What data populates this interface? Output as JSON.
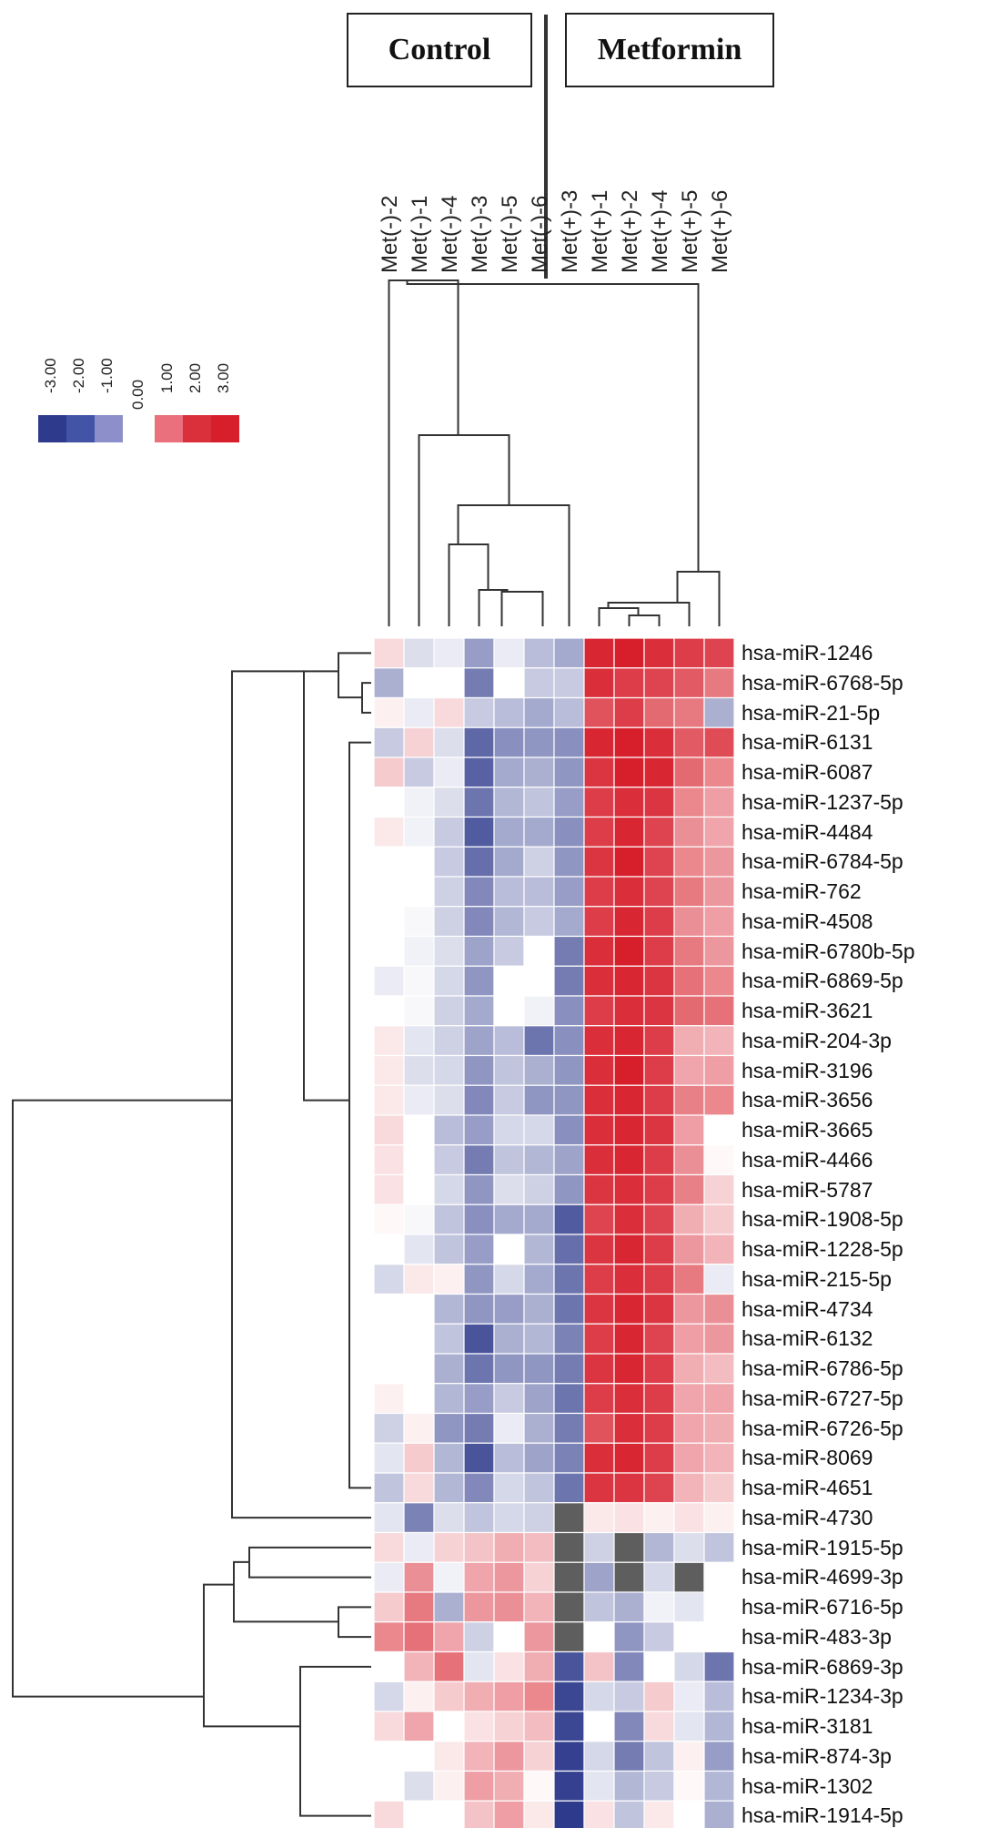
{
  "chart_data": {
    "type": "heatmap",
    "groups": [
      {
        "label": "Control"
      },
      {
        "label": "Metformin"
      }
    ],
    "columns": [
      "Met(-)-2",
      "Met(-)-1",
      "Met(-)-4",
      "Met(-)-3",
      "Met(-)-5",
      "Met(-)-6",
      "Met(+)-3",
      "Met(+)-1",
      "Met(+)-2",
      "Met(+)-4",
      "Met(+)-5",
      "Met(+)-6"
    ],
    "rows": [
      "hsa-miR-1246",
      "hsa-miR-6768-5p",
      "hsa-miR-21-5p",
      "hsa-miR-6131",
      "hsa-miR-6087",
      "hsa-miR-1237-5p",
      "hsa-miR-4484",
      "hsa-miR-6784-5p",
      "hsa-miR-762",
      "hsa-miR-4508",
      "hsa-miR-6780b-5p",
      "hsa-miR-6869-5p",
      "hsa-miR-3621",
      "hsa-miR-204-3p",
      "hsa-miR-3196",
      "hsa-miR-3656",
      "hsa-miR-3665",
      "hsa-miR-4466",
      "hsa-miR-5787",
      "hsa-miR-1908-5p",
      "hsa-miR-1228-5p",
      "hsa-miR-215-5p",
      "hsa-miR-4734",
      "hsa-miR-6132",
      "hsa-miR-6786-5p",
      "hsa-miR-6727-5p",
      "hsa-miR-6726-5p",
      "hsa-miR-8069",
      "hsa-miR-4651",
      "hsa-miR-4730",
      "hsa-miR-1915-5p",
      "hsa-miR-4699-3p",
      "hsa-miR-6716-5p",
      "hsa-miR-483-3p",
      "hsa-miR-6869-3p",
      "hsa-miR-1234-3p",
      "hsa-miR-3181",
      "hsa-miR-874-3p",
      "hsa-miR-1302",
      "hsa-miR-1914-5p"
    ],
    "values": [
      [
        0.5,
        -0.5,
        -0.3,
        -1.5,
        -0.3,
        -1.0,
        -1.3,
        2.9,
        3.0,
        2.8,
        2.6,
        2.5
      ],
      [
        -1.2,
        0,
        0,
        -2.0,
        0,
        -0.8,
        -0.8,
        2.8,
        2.6,
        2.5,
        2.2,
        1.8
      ],
      [
        0.2,
        -0.3,
        0.5,
        -0.8,
        -1.0,
        -1.3,
        -1.0,
        2.3,
        2.6,
        2.0,
        1.8,
        -1.2
      ],
      [
        -0.8,
        0.6,
        -0.5,
        -2.3,
        -1.7,
        -1.6,
        -1.7,
        2.9,
        3.0,
        2.8,
        2.2,
        2.4
      ],
      [
        0.7,
        -0.8,
        -0.3,
        -2.4,
        -1.3,
        -1.2,
        -1.6,
        2.7,
        3.0,
        2.9,
        2.0,
        1.6
      ],
      [
        0,
        -0.2,
        -0.5,
        -2.1,
        -1.1,
        -0.9,
        -1.5,
        2.6,
        2.8,
        2.7,
        1.6,
        1.3
      ],
      [
        0.3,
        -0.2,
        -0.8,
        -2.5,
        -1.3,
        -1.3,
        -1.7,
        2.6,
        2.9,
        2.5,
        1.5,
        1.2
      ],
      [
        0,
        0,
        -0.8,
        -2.2,
        -1.3,
        -0.7,
        -1.6,
        2.7,
        3.0,
        2.5,
        1.6,
        1.4
      ],
      [
        0,
        0,
        -0.7,
        -1.8,
        -1.0,
        -1.0,
        -1.5,
        2.6,
        2.8,
        2.5,
        1.8,
        1.4
      ],
      [
        0,
        -0.1,
        -0.7,
        -1.8,
        -1.1,
        -0.8,
        -1.3,
        2.6,
        2.9,
        2.6,
        1.5,
        1.3
      ],
      [
        0,
        -0.2,
        -0.5,
        -1.4,
        -0.8,
        0,
        -2.0,
        2.8,
        3.0,
        2.6,
        1.8,
        1.4
      ],
      [
        -0.3,
        -0.1,
        -0.6,
        -1.6,
        0,
        0,
        -2.0,
        2.8,
        2.9,
        2.7,
        1.9,
        1.6
      ],
      [
        0,
        -0.1,
        -0.7,
        -1.3,
        0,
        -0.2,
        -1.7,
        2.6,
        2.8,
        2.7,
        2.0,
        1.9
      ],
      [
        0.3,
        -0.4,
        -0.7,
        -1.4,
        -1.0,
        -2.1,
        -1.7,
        2.8,
        2.9,
        2.6,
        1.1,
        1.0
      ],
      [
        0.3,
        -0.5,
        -0.6,
        -1.6,
        -0.9,
        -1.2,
        -1.6,
        2.8,
        3.0,
        2.6,
        1.2,
        1.3
      ],
      [
        0.3,
        -0.3,
        -0.5,
        -1.8,
        -0.8,
        -1.6,
        -1.6,
        2.8,
        2.9,
        2.6,
        1.7,
        1.6
      ],
      [
        0.5,
        0,
        -1.0,
        -1.5,
        -0.6,
        -0.6,
        -1.7,
        2.8,
        2.9,
        2.7,
        1.3,
        0
      ],
      [
        0.4,
        0,
        -0.8,
        -2.0,
        -0.9,
        -1.1,
        -1.4,
        2.8,
        2.9,
        2.6,
        1.5,
        0.1
      ],
      [
        0.4,
        0,
        -0.6,
        -1.6,
        -0.5,
        -0.7,
        -1.6,
        2.7,
        2.8,
        2.6,
        1.7,
        0.6
      ],
      [
        0.1,
        -0.1,
        -0.9,
        -1.7,
        -1.3,
        -1.3,
        -2.5,
        2.5,
        2.8,
        2.5,
        1.1,
        0.7
      ],
      [
        0,
        -0.4,
        -0.9,
        -1.5,
        0,
        -1.1,
        -2.2,
        2.7,
        2.9,
        2.6,
        1.4,
        1.0
      ],
      [
        -0.6,
        0.3,
        0.2,
        -1.6,
        -0.6,
        -1.3,
        -2.1,
        2.6,
        2.8,
        2.6,
        1.8,
        -0.3
      ],
      [
        0,
        0,
        -1.1,
        -1.6,
        -1.5,
        -1.2,
        -2.1,
        2.7,
        2.9,
        2.7,
        1.4,
        1.5
      ],
      [
        0,
        0,
        -0.9,
        -2.6,
        -1.2,
        -1.1,
        -1.9,
        2.6,
        2.9,
        2.5,
        1.3,
        1.4
      ],
      [
        0,
        0,
        -1.2,
        -2.1,
        -1.6,
        -1.6,
        -2.0,
        2.7,
        2.9,
        2.6,
        1.1,
        0.9
      ],
      [
        0.2,
        0,
        -1.1,
        -1.5,
        -0.8,
        -1.4,
        -2.1,
        2.6,
        2.8,
        2.6,
        1.2,
        1.2
      ],
      [
        -0.7,
        0.2,
        -1.6,
        -2.0,
        -0.3,
        -1.2,
        -2.0,
        2.3,
        2.8,
        2.6,
        1.2,
        1.1
      ],
      [
        -0.4,
        0.7,
        -1.1,
        -2.6,
        -1.0,
        -1.4,
        -1.9,
        2.8,
        2.9,
        2.6,
        1.2,
        1.0
      ],
      [
        -0.9,
        0.5,
        -1.1,
        -1.8,
        -0.6,
        -0.9,
        -2.1,
        2.7,
        2.7,
        2.5,
        1.0,
        0.7
      ],
      [
        -0.4,
        -1.9,
        -0.5,
        -0.9,
        -0.6,
        -0.7,
        null,
        0.3,
        0.4,
        0.2,
        0.4,
        0.2
      ],
      [
        0.5,
        -0.3,
        0.6,
        0.8,
        1.1,
        0.9,
        null,
        -0.7,
        null,
        -1.1,
        -0.5,
        -0.9
      ],
      [
        -0.3,
        1.5,
        -0.2,
        1.2,
        1.4,
        0.6,
        null,
        -1.4,
        null,
        -0.6,
        null,
        0
      ],
      [
        0.7,
        1.8,
        -1.2,
        1.4,
        1.5,
        1.0,
        null,
        -0.9,
        -1.2,
        -0.2,
        -0.4,
        0
      ],
      [
        1.6,
        1.9,
        1.2,
        -0.7,
        0,
        1.4,
        null,
        0,
        -1.6,
        -0.8,
        0,
        0
      ],
      [
        0,
        1.0,
        1.9,
        -0.4,
        0.4,
        1.1,
        -2.6,
        0.8,
        -1.8,
        0,
        -0.6,
        -2.1
      ],
      [
        -0.6,
        0.2,
        0.7,
        1.1,
        1.3,
        1.6,
        -2.8,
        -0.6,
        -0.8,
        0.7,
        -0.3,
        -1.0
      ],
      [
        0.5,
        1.2,
        0,
        0.4,
        0.6,
        0.9,
        -2.8,
        0,
        -1.8,
        0.5,
        -0.4,
        -1.1
      ],
      [
        0,
        0,
        0.3,
        1.0,
        1.4,
        0.6,
        -2.9,
        -0.6,
        -2.0,
        -0.9,
        0.2,
        -1.5
      ],
      [
        0,
        -0.5,
        0.2,
        1.3,
        1.1,
        0.1,
        -2.9,
        -0.4,
        -1.1,
        -0.8,
        0.1,
        -1.1
      ],
      [
        0.5,
        0,
        0,
        0.8,
        1.3,
        0.3,
        -3.0,
        0.4,
        -0.9,
        0.3,
        0,
        -1.2
      ]
    ],
    "color_scale": {
      "ticks": [
        "-3.00",
        "-2.00",
        "-1.00",
        "0.00",
        "1.00",
        "2.00",
        "3.00"
      ],
      "colors": [
        "#2e3a8c",
        "#4353a6",
        "#8c8fc9",
        "#ffffff",
        "#e9707c",
        "#d9303b",
        "#d71f2c"
      ],
      "missing_color": "#5e5e5e"
    },
    "dendrograms": {
      "columns": "top",
      "rows": "left"
    }
  }
}
